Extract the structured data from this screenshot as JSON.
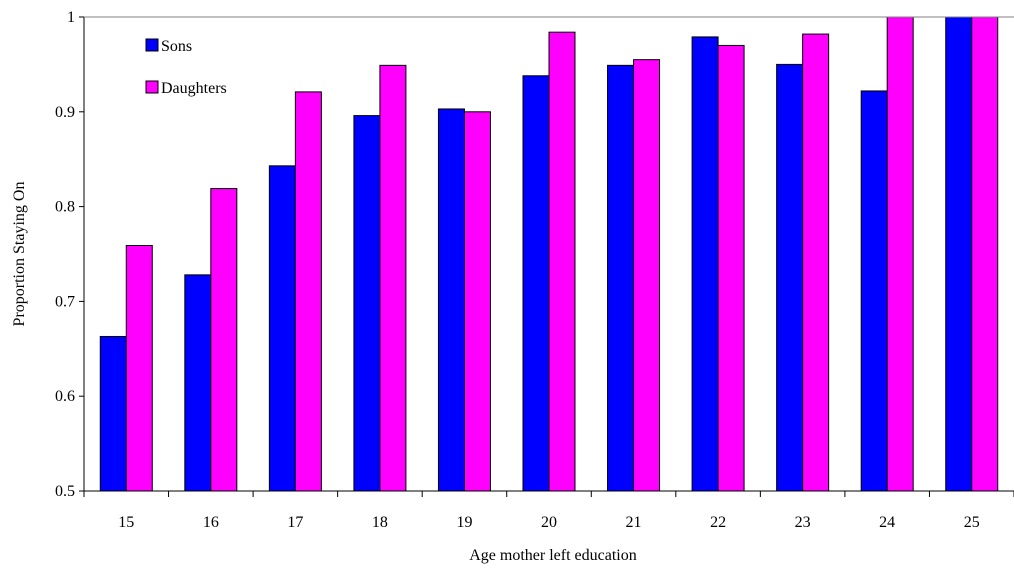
{
  "chart_data": {
    "type": "bar",
    "title": "",
    "xlabel": "Age mother left education",
    "ylabel": "Proportion Staying On",
    "categories": [
      "15",
      "16",
      "17",
      "18",
      "19",
      "20",
      "21",
      "22",
      "23",
      "24",
      "25"
    ],
    "series": [
      {
        "name": "Sons",
        "color": "#0000ff",
        "values": [
          0.663,
          0.728,
          0.843,
          0.896,
          0.903,
          0.938,
          0.949,
          0.979,
          0.95,
          0.922,
          1.0
        ]
      },
      {
        "name": "Daughters",
        "color": "#ff00ff",
        "values": [
          0.759,
          0.819,
          0.921,
          0.949,
          0.9,
          0.984,
          0.955,
          0.97,
          0.982,
          1.0,
          1.0
        ]
      }
    ],
    "ylim": [
      0.5,
      1.0
    ],
    "yticks": [
      0.5,
      0.6,
      0.7,
      0.8,
      0.9,
      1.0
    ],
    "ytick_labels": [
      "0.5",
      "0.6",
      "0.7",
      "0.8",
      "0.9",
      "1"
    ],
    "grid": false,
    "legend": "top-left"
  }
}
